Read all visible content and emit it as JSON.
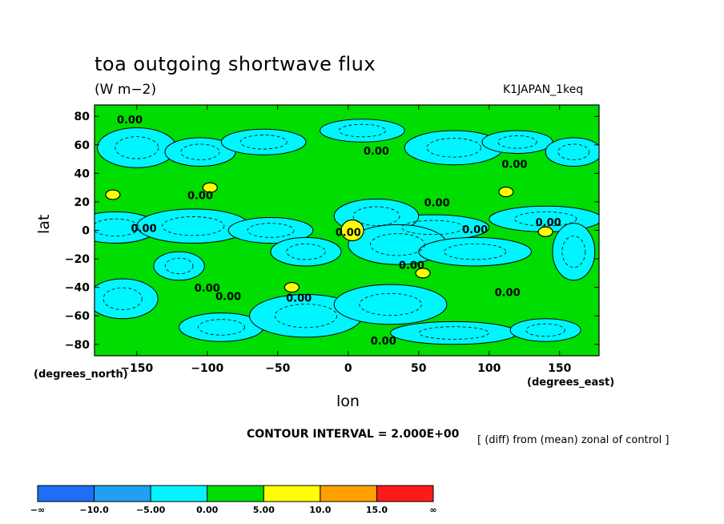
{
  "header": {
    "title": "toa outgoing shortwave flux",
    "units": "(W m−2)",
    "run": "K1JAPAN_1keq"
  },
  "axes": {
    "ylabel": "lat",
    "xlabel": "lon",
    "y_units": "(degrees_north)",
    "x_units": "(degrees_east)"
  },
  "footer": {
    "contour_interval": "CONTOUR INTERVAL = 2.000E+00",
    "diff_note": "[ (diff) from (mean) zonal of control ]"
  },
  "chart_data": {
    "type": "heatmap",
    "subtype": "filled contour map",
    "x_ticks": [
      -150,
      -100,
      -50,
      0,
      50,
      100,
      150
    ],
    "y_ticks": [
      80,
      60,
      40,
      20,
      0,
      -20,
      -40,
      -60,
      -80
    ],
    "x_tick_labels": [
      "−150",
      "−100",
      "−50",
      "0",
      "50",
      "100",
      "150"
    ],
    "y_tick_labels": [
      "80",
      "60",
      "40",
      "20",
      "0",
      "−20",
      "−40",
      "−60",
      "−80"
    ],
    "xlim": [
      -180,
      178
    ],
    "ylim": [
      -88,
      88
    ],
    "contour_labels": [
      {
        "text": "0.00",
        "lon": -155,
        "lat": 75
      },
      {
        "text": "0.00",
        "lon": 20,
        "lat": 53
      },
      {
        "text": "0.00",
        "lon": 118,
        "lat": 44
      },
      {
        "text": "0.00",
        "lon": -105,
        "lat": 22
      },
      {
        "text": "0.00",
        "lon": 63,
        "lat": 17
      },
      {
        "text": "0.00",
        "lon": -145,
        "lat": -1
      },
      {
        "text": "0.00",
        "lon": 0,
        "lat": -4
      },
      {
        "text": "0.00",
        "lon": 90,
        "lat": -2
      },
      {
        "text": "0.00",
        "lon": 142,
        "lat": 3
      },
      {
        "text": "0.00",
        "lon": 45,
        "lat": -27
      },
      {
        "text": "0.00",
        "lon": -100,
        "lat": -43
      },
      {
        "text": "0.00",
        "lon": -85,
        "lat": -49
      },
      {
        "text": "0.00",
        "lon": -35,
        "lat": -50
      },
      {
        "text": "0.00",
        "lon": 113,
        "lat": -46
      },
      {
        "text": "0.00",
        "lon": 25,
        "lat": -80
      }
    ],
    "regions_positive_5_10": [
      {
        "lon": -167,
        "lat": 25
      },
      {
        "lon": -98,
        "lat": 30
      },
      {
        "lon": 3,
        "lat": 0
      },
      {
        "lon": 112,
        "lat": 27
      },
      {
        "lon": 140,
        "lat": -1
      },
      {
        "lon": 53,
        "lat": -30
      },
      {
        "lon": -40,
        "lat": -40
      }
    ],
    "colorbar": {
      "levels": [
        "−∞",
        "−10.0",
        "−5.00",
        "0.00",
        "5.00",
        "10.0",
        "15.0",
        "∞"
      ],
      "colors": [
        "#1f6ef5",
        "#21a0f0",
        "#00f5ff",
        "#00dd00",
        "#ffff00",
        "#ffa000",
        "#ff1a1a"
      ]
    },
    "colors": {
      "negative_0_5": "#00f5ff",
      "positive_0_5": "#00dd00",
      "positive_5_10": "#ffff00"
    }
  }
}
